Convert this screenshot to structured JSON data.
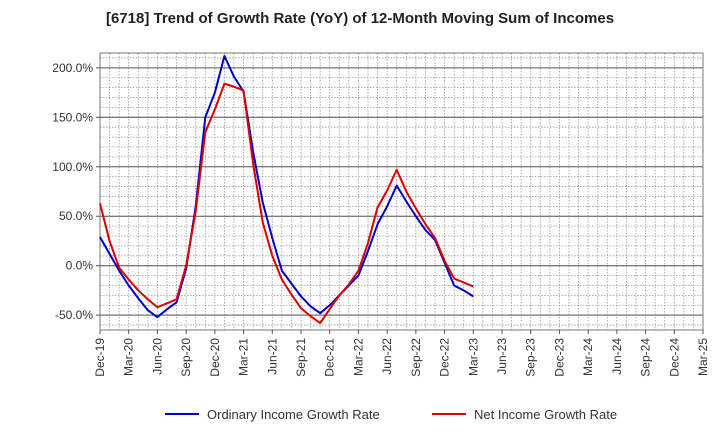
{
  "chart_data": {
    "type": "line",
    "title": "[6718]  Trend of Growth Rate (YoY) of 12-Month Moving Sum of Incomes",
    "xlabel": "",
    "ylabel": "",
    "ylim": [
      -65,
      215
    ],
    "yticks": [
      200,
      150,
      100,
      50,
      0,
      -50
    ],
    "ytick_labels": [
      "200.0%",
      "150.0%",
      "100.0%",
      "50.0%",
      "0.0%",
      "-50.0%"
    ],
    "x_tick_labels": [
      "Dec-19",
      "Mar-20",
      "Jun-20",
      "Sep-20",
      "Dec-20",
      "Mar-21",
      "Jun-21",
      "Sep-21",
      "Dec-21",
      "Mar-22",
      "Jun-22",
      "Sep-22",
      "Dec-22",
      "Mar-23",
      "Jun-23",
      "Sep-23",
      "Dec-23",
      "Mar-24",
      "Jun-24",
      "Sep-24",
      "Dec-24",
      "Mar-25"
    ],
    "grid": true,
    "legend_position": "bottom",
    "series": [
      {
        "name": "Ordinary Income Growth Rate",
        "color": "#0000cc",
        "values": [
          29,
          12,
          -5,
          -20,
          -33,
          -45,
          -52,
          -44,
          -37,
          -3,
          60,
          150,
          175,
          212,
          191,
          176,
          115,
          64,
          28,
          -5,
          -18,
          -31,
          -41,
          -48,
          -40,
          -30,
          -20,
          -10,
          15,
          42,
          60,
          81,
          65,
          50,
          36,
          26,
          3,
          -20,
          -25,
          -31
        ]
      },
      {
        "name": "Net Income Growth Rate",
        "color": "#dd0000",
        "values": [
          63,
          25,
          -2,
          -14,
          -25,
          -34,
          -42,
          -38,
          -34,
          0,
          55,
          135,
          158,
          184,
          181,
          177,
          103,
          44,
          10,
          -14,
          -29,
          -43,
          -51,
          -58,
          -44,
          -30,
          -19,
          -5,
          23,
          59,
          76,
          97,
          75,
          58,
          42,
          28,
          5,
          -13,
          -17,
          -21
        ]
      }
    ]
  }
}
